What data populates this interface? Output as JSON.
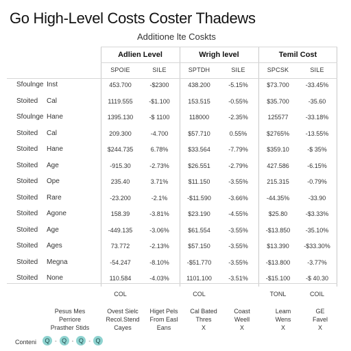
{
  "title": "Go High-Level Costs Coster Thadews",
  "subtitle": "Additione lte Coskts",
  "groups": [
    {
      "label": "Adlien Level"
    },
    {
      "label": "Wrigh level"
    },
    {
      "label": "Temil Cost"
    }
  ],
  "subheaders": [
    "SPOIE",
    "SILE",
    "SPTDH",
    "SILE",
    "SPCSK",
    "SILE"
  ],
  "rows": [
    {
      "label1": "Sfoulnge",
      "label2": "Inst",
      "cells": [
        "453.700",
        "-$2300",
        "438.200",
        "-5.15%",
        "$73.700",
        "-33.45%"
      ]
    },
    {
      "label1": "Stoited",
      "label2": "Cal",
      "cells": [
        "1119.555",
        "-$1.100",
        "153.515",
        "-0.55%",
        "$35.700",
        "-35.60"
      ]
    },
    {
      "label1": "Sfoulnge",
      "label2": "Hane",
      "cells": [
        "1395.130",
        "-$ 1100",
        "118000",
        "-2.35%",
        "125577",
        "-33.18%"
      ]
    },
    {
      "label1": "Stoited",
      "label2": "Cal",
      "cells": [
        "209.300",
        "-4.700",
        "$57.710",
        "0.55%",
        "$2765%",
        "-13.55%"
      ]
    },
    {
      "label1": "Stoited",
      "label2": "Hane",
      "cells": [
        "$244.735",
        "6.78%",
        "$33.564",
        "-7.79%",
        "$359.10",
        "-$ 35%"
      ]
    },
    {
      "label1": "Stoited",
      "label2": "Age",
      "cells": [
        "-915.30",
        "-2.73%",
        "$26.551",
        "-2.79%",
        "427.586",
        "-6.15%"
      ]
    },
    {
      "label1": "Stoited",
      "label2": "Ope",
      "cells": [
        "235.40",
        "3.71%",
        "$11.150",
        "-3.55%",
        "215.315",
        "-0.79%"
      ]
    },
    {
      "label1": "Stoited",
      "label2": "Rare",
      "cells": [
        "-23.200",
        "-2.1%",
        "-$11.590",
        "-3.66%",
        "-44.35%",
        "-33.90"
      ]
    },
    {
      "label1": "Stoited",
      "label2": "Agone",
      "cells": [
        "158.39",
        "-3.81%",
        "$23.190",
        "-4.55%",
        "$25.80",
        "-$3.33%"
      ]
    },
    {
      "label1": "Stoited",
      "label2": "Age",
      "cells": [
        "-449.135",
        "-3.06%",
        "$61.554",
        "-3.55%",
        "-$13.850",
        "-35.10%"
      ]
    },
    {
      "label1": "Stoited",
      "label2": "Ages",
      "cells": [
        "73.772",
        "-2.13%",
        "$57.150",
        "-3.55%",
        "$13.390",
        "-$33.30%"
      ]
    },
    {
      "label1": "Stoited",
      "label2": "Megna",
      "cells": [
        "-54.247",
        "-8.10%",
        "-$51.770",
        "-3.55%",
        "-$13.800",
        "-3.77%"
      ]
    },
    {
      "label1": "Stoited",
      "label2": "None",
      "cells": [
        "110.584",
        "-4.03%",
        "1101.100",
        "-3.51%",
        "-$15.100",
        "-$ 40.30"
      ]
    }
  ],
  "footers": [
    "COL",
    "",
    "COL",
    "",
    "TONL",
    "COIL"
  ],
  "legend": [
    {
      "text": "Pesus Mes\nPerriore\nPrasther Stids"
    },
    {
      "text": "Ovest Sielc\nRecol.Stend\nCayes"
    },
    {
      "text": "Higet Pels\nFrom Easl\nEans"
    },
    {
      "text": "Cal Bated\nThres\nX"
    },
    {
      "text": "Coast\nWeell\nX"
    },
    {
      "text": "Leam\nWens\nX"
    },
    {
      "text": "GE\nFavel\nX"
    }
  ],
  "bottom_label": "Conteni",
  "dots": [
    "Q",
    "Q",
    "Q",
    "Q"
  ],
  "accent": "#8fd3d0"
}
